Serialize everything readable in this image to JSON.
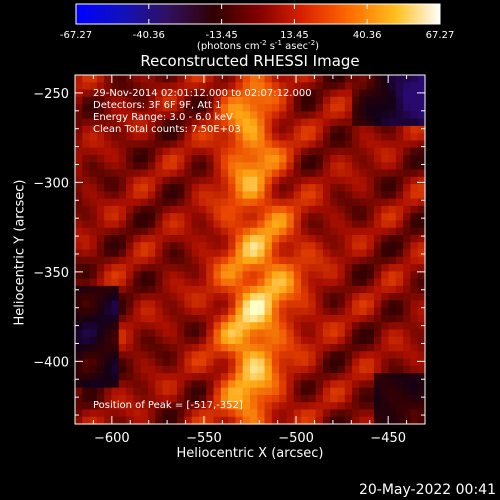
{
  "colorbar": {
    "ticks": [
      "-67.27",
      "-40.36",
      "-13.45",
      "13.45",
      "40.36",
      "67.27"
    ],
    "units": "(photons cm",
    "units_exp1": "-2",
    "units_mid": " s",
    "units_exp2": "-1",
    "units_mid2": " asec",
    "units_exp3": "-2",
    "units_end": ")",
    "range": [
      -67.27,
      67.27
    ]
  },
  "chart_data": {
    "type": "heatmap",
    "title": "Reconstructed RHESSI Image",
    "xlabel": "Heliocentric X (arcsec)",
    "ylabel": "Heliocentric Y (arcsec)",
    "xlim": [
      -620,
      -430
    ],
    "ylim": [
      -435,
      -240
    ],
    "xticks": [
      -600,
      -550,
      -500,
      -450
    ],
    "xtick_labels": [
      "−600",
      "−550",
      "−500",
      "−450"
    ],
    "yticks": [
      -250,
      -300,
      -350,
      -400
    ],
    "ytick_labels": [
      "−250",
      "−300",
      "−350",
      "−400"
    ],
    "peak": [
      -517,
      -352
    ],
    "annotations": [
      "29-Nov-2014 02:01:12.000 to 02:07:12.000",
      "Detectors: 3F 6F 9F, Att 1",
      "Energy Range: 3.0 - 6.0 keV",
      "Clean     Total counts: 7.50E+03"
    ],
    "peak_label": "Position of Peak = [-517,-352]"
  },
  "footer": {
    "timestamp": "20-May-2022 00:41"
  }
}
